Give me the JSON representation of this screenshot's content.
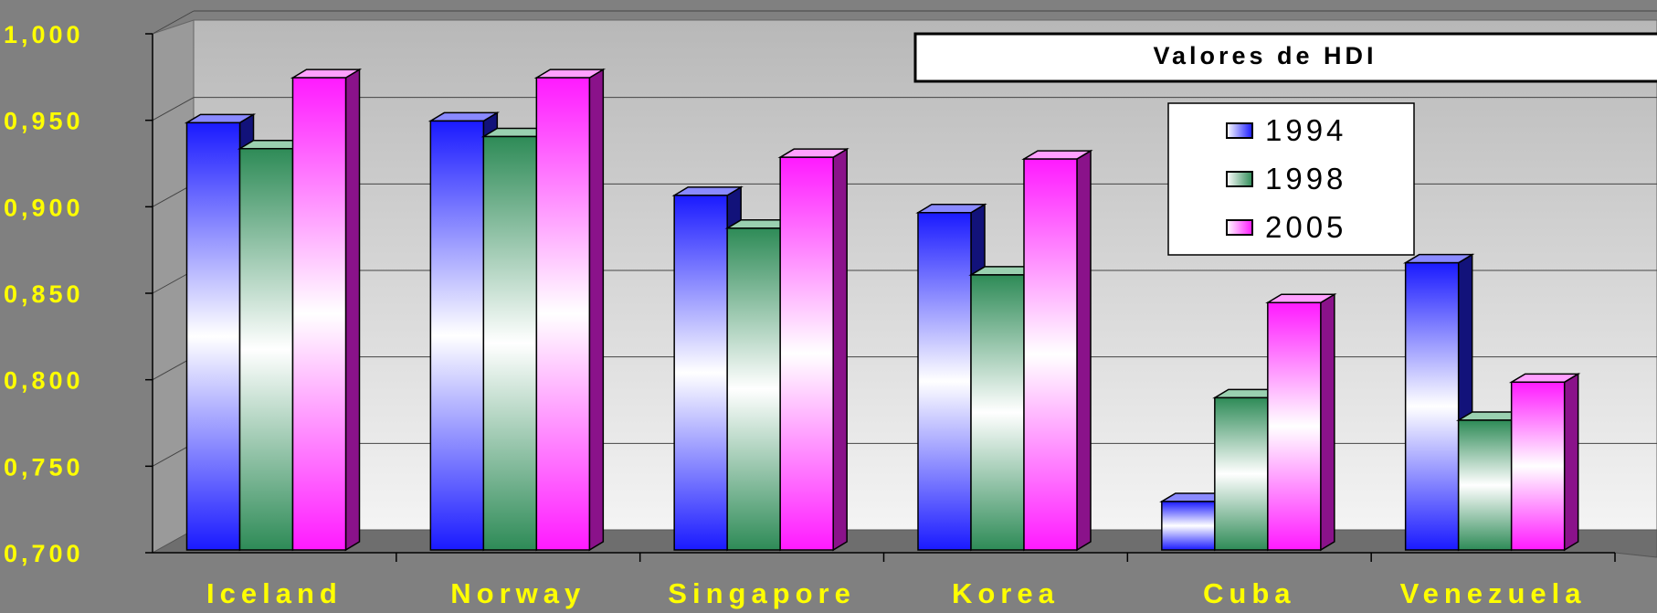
{
  "chart_data": {
    "type": "bar",
    "title": "Valores de HDI",
    "categories": [
      "Iceland",
      "Norway",
      "Singapore",
      "Korea",
      "Cuba",
      "Venezuela"
    ],
    "series": [
      {
        "name": "1994",
        "values": [
          0.942,
          0.943,
          0.9,
          0.89,
          0.723,
          0.861
        ]
      },
      {
        "name": "1998",
        "values": [
          0.927,
          0.934,
          0.881,
          0.854,
          0.783,
          0.77
        ]
      },
      {
        "name": "2005",
        "values": [
          0.968,
          0.968,
          0.922,
          0.921,
          0.838,
          0.792
        ]
      }
    ],
    "ylim": [
      0.7,
      1.0
    ],
    "yticks": [
      "0,700",
      "0,750",
      "0,800",
      "0,850",
      "0,900",
      "0,950",
      "1,000"
    ],
    "xlabel": "",
    "ylabel": "",
    "legend_position": "top-right",
    "grid": true,
    "colors": {
      "1994": "#1a1aff",
      "1998": "#2e8b57",
      "2005": "#ff1aff",
      "axis_text": "#ffff00",
      "background": "#808080"
    }
  }
}
